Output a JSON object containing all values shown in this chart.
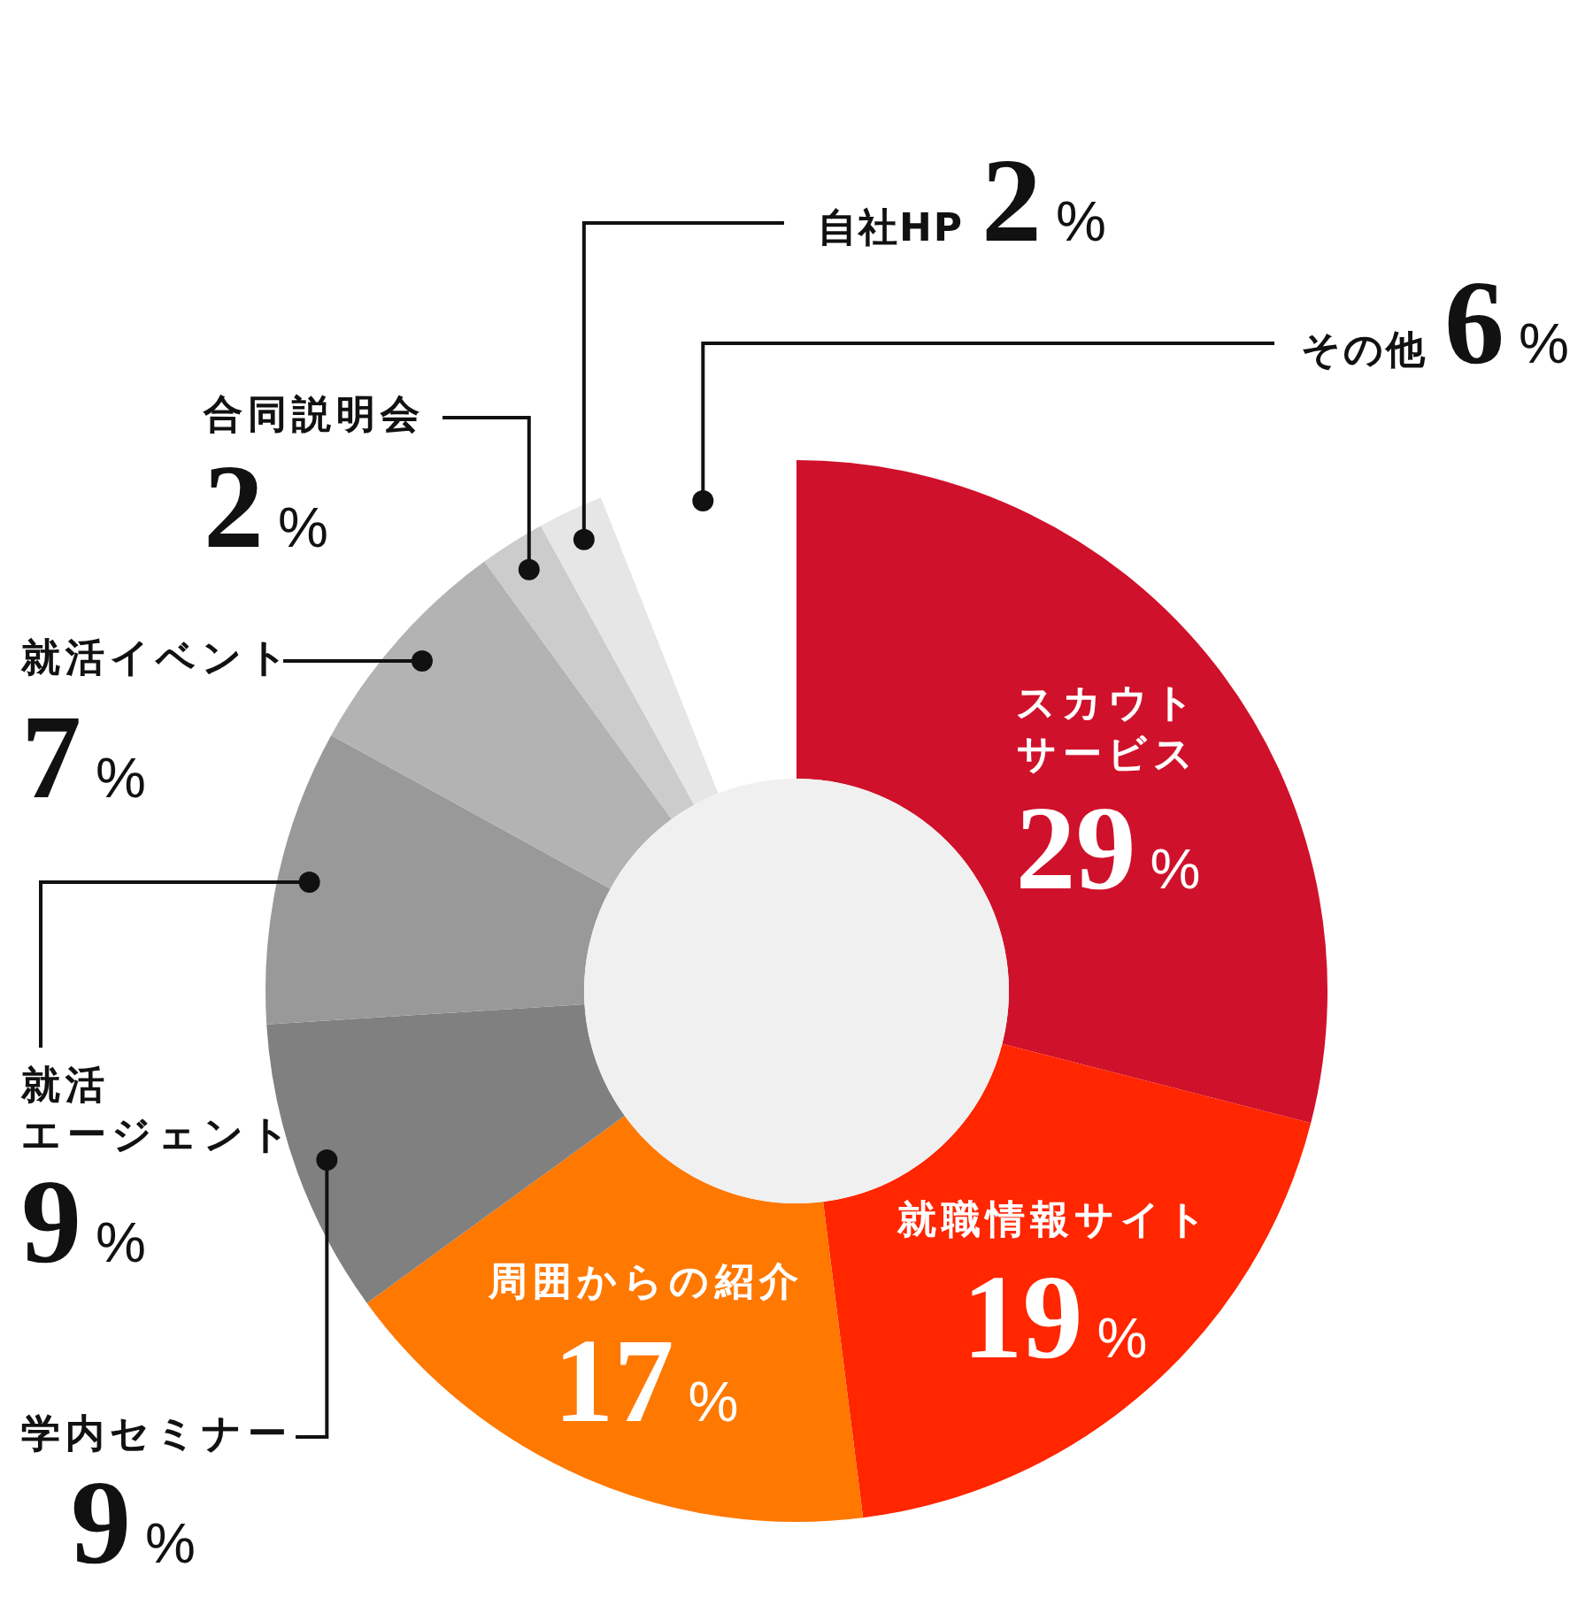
{
  "chart_data": {
    "type": "donut",
    "categories": [
      "スカウトサービス",
      "就職情報サイト",
      "周囲からの紹介",
      "学内セミナー",
      "就活エージェント",
      "就活イベント",
      "合同説明会",
      "自社HP",
      "その他"
    ],
    "values": [
      29,
      19,
      17,
      9,
      9,
      7,
      2,
      2,
      6
    ],
    "colors": [
      "#d0112b",
      "#ff2600",
      "#ff7800",
      "#808080",
      "#999999",
      "#b3b3b3",
      "#cccccc",
      "#e6e6e6",
      "#ffffff"
    ],
    "value_labels": [
      "29%",
      "19%",
      "17%",
      "9%",
      "9%",
      "7%",
      "2%",
      "2%",
      "6%"
    ]
  }
}
